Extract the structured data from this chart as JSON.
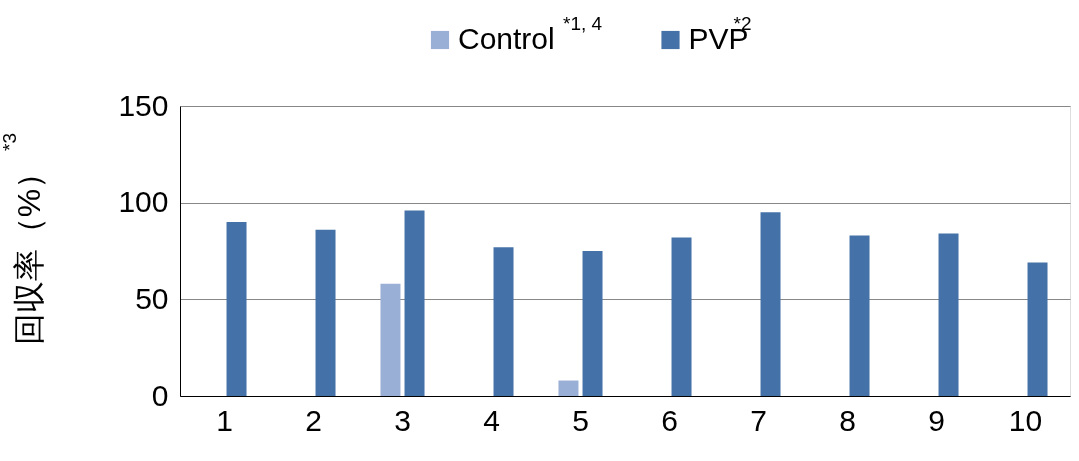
{
  "chart_data": {
    "type": "bar",
    "ylabel": "回収率（%）$^{*3}$",
    "categories": [
      "1",
      "2",
      "3",
      "4",
      "5",
      "6",
      "7",
      "8",
      "9",
      "10"
    ],
    "series": [
      {
        "name": "Control$^{*1, 4}$",
        "color": "#9aafd6",
        "values": [
          null,
          null,
          58,
          null,
          8,
          null,
          null,
          null,
          null,
          null
        ]
      },
      {
        "name": "PVP$^{*2}$",
        "color": "#4472a8",
        "values": [
          90,
          86,
          96,
          77,
          75,
          82,
          95,
          83,
          84,
          69
        ]
      }
    ],
    "ylim": [
      0,
      150
    ],
    "yticks": [
      0,
      50,
      100,
      150
    ],
    "grid": "y",
    "legend": "top"
  }
}
